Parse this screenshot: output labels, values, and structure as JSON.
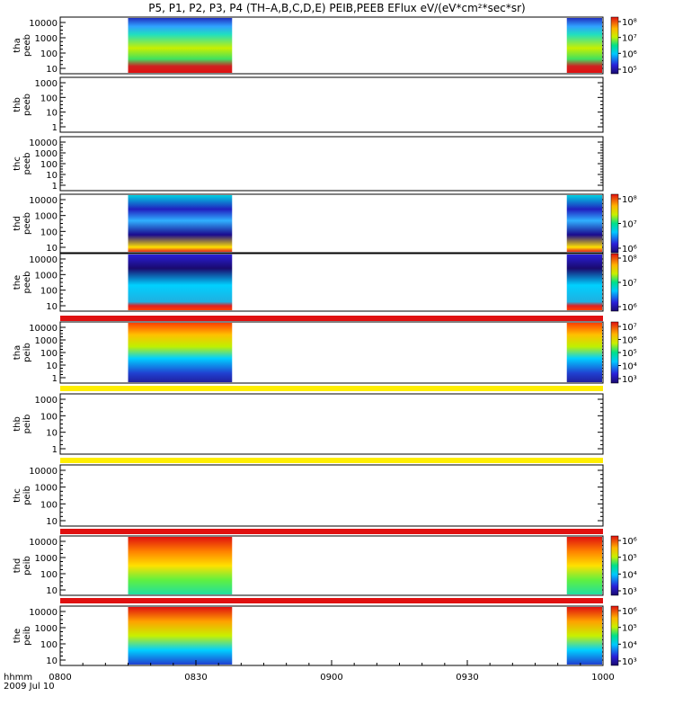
{
  "title": "P5, P1, P2, P3, P4 (TH–A,B,C,D,E) PEIB,PEEB EFlux eV/(eV*cm²*sec*sr)",
  "chart_data": {
    "type": "heatmap",
    "x_ticks": [
      "0800",
      "0830",
      "0900",
      "0930",
      "1000"
    ],
    "x_label_left": "hhmm",
    "date_label": "2009 Jul 10",
    "xlim": [
      "0800",
      "1000"
    ],
    "panels": [
      {
        "id": "tha-peeb",
        "label": [
          "tha",
          "peeb"
        ],
        "yticks": [
          "10",
          "100",
          "1000",
          "10000"
        ],
        "colorbar": [
          "10⁵",
          "10⁶",
          "10⁷",
          "10⁸"
        ],
        "blocks": [
          "0815-0838",
          "0952-1000"
        ],
        "status_bar": ""
      },
      {
        "id": "thb-peeb",
        "label": [
          "thb",
          "peeb"
        ],
        "yticks": [
          "1",
          "10",
          "100",
          "1000"
        ],
        "colorbar": [],
        "blocks": [],
        "status_bar": ""
      },
      {
        "id": "thc-peeb",
        "label": [
          "thc",
          "peeb"
        ],
        "yticks": [
          "1",
          "10",
          "100",
          "1000",
          "10000"
        ],
        "colorbar": [],
        "blocks": [],
        "status_bar": ""
      },
      {
        "id": "thd-peeb",
        "label": [
          "thd",
          "peeb"
        ],
        "yticks": [
          "10",
          "100",
          "1000",
          "10000"
        ],
        "colorbar": [
          "10⁶",
          "10⁷",
          "10⁸"
        ],
        "blocks": [
          "0815-0838",
          "0952-1000"
        ],
        "status_bar": ""
      },
      {
        "id": "the-peeb",
        "label": [
          "the",
          "peeb"
        ],
        "yticks": [
          "10",
          "100",
          "1000",
          "10000"
        ],
        "colorbar": [
          "10⁶",
          "10⁷",
          "10⁸"
        ],
        "blocks": [
          "0815-0838",
          "0952-1000"
        ],
        "status_bar": "red"
      },
      {
        "id": "tha-peib",
        "label": [
          "tha",
          "peib"
        ],
        "yticks": [
          "1",
          "10",
          "100",
          "1000",
          "10000"
        ],
        "colorbar": [
          "10³",
          "10⁴",
          "10⁵",
          "10⁶",
          "10⁷"
        ],
        "blocks": [
          "0815-0838",
          "0952-1000"
        ],
        "status_bar": "yellow"
      },
      {
        "id": "thb-peib",
        "label": [
          "thb",
          "peib"
        ],
        "yticks": [
          "1",
          "10",
          "100",
          "1000"
        ],
        "colorbar": [],
        "blocks": [],
        "status_bar": "yellow"
      },
      {
        "id": "thc-peib",
        "label": [
          "thc",
          "peib"
        ],
        "yticks": [
          "10",
          "100",
          "1000",
          "10000"
        ],
        "colorbar": [],
        "blocks": [],
        "status_bar": "red"
      },
      {
        "id": "thd-peib",
        "label": [
          "thd",
          "peib"
        ],
        "yticks": [
          "10",
          "100",
          "1000",
          "10000"
        ],
        "colorbar": [
          "10³",
          "10⁴",
          "10⁵",
          "10⁶"
        ],
        "blocks": [
          "0815-0838",
          "0952-1000"
        ],
        "status_bar": "red"
      },
      {
        "id": "the-peib",
        "label": [
          "the",
          "peib"
        ],
        "yticks": [
          "10",
          "100",
          "1000",
          "10000"
        ],
        "colorbar": [
          "10³",
          "10⁴",
          "10⁵",
          "10⁶"
        ],
        "blocks": [
          "0815-0838",
          "0952-1000"
        ],
        "status_bar": ""
      }
    ]
  }
}
